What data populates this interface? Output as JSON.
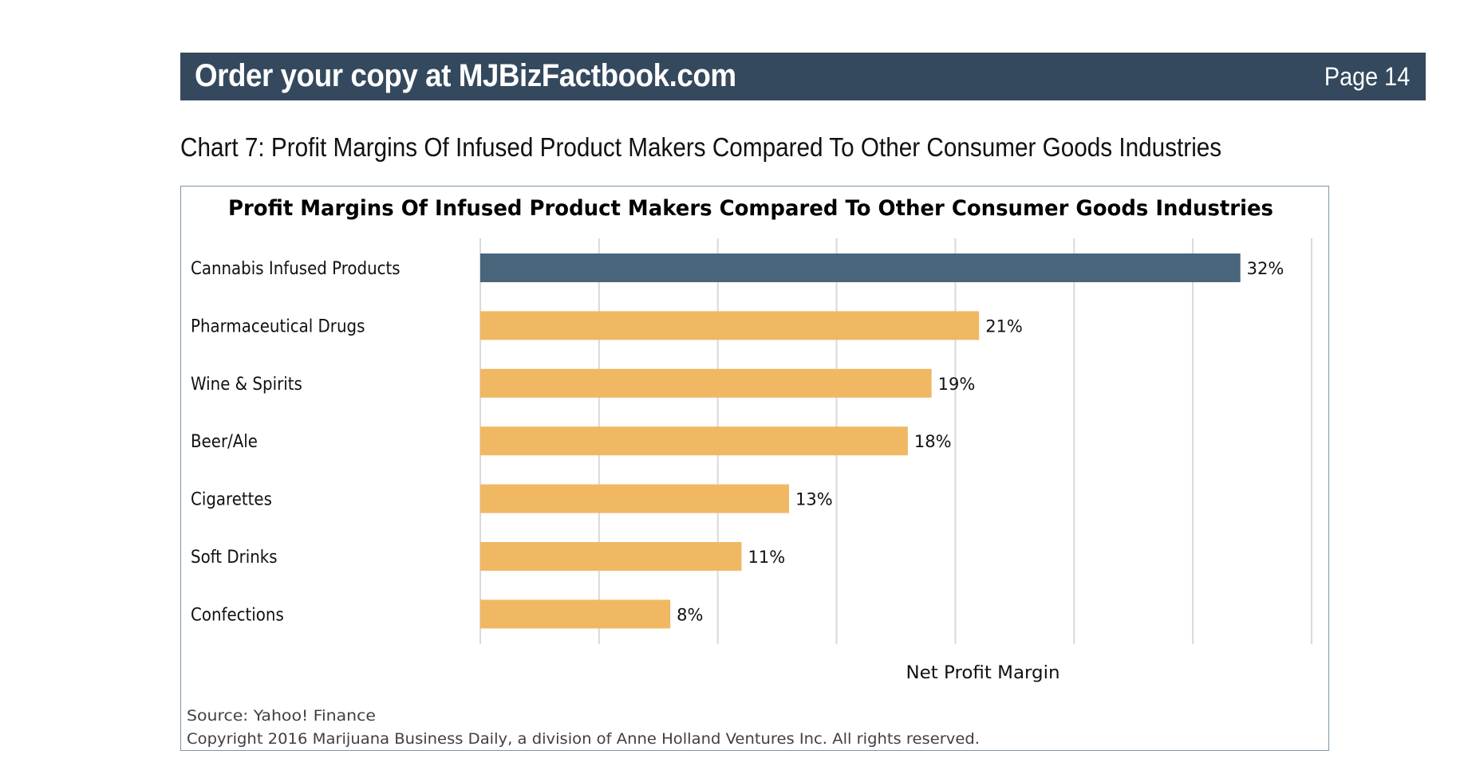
{
  "banner": {
    "title": "Order your copy at MJBizFactbook.com",
    "page": "Page 14"
  },
  "heading": "Chart 7: Profit Margins Of Infused Product Makers Compared To Other Consumer Goods Industries",
  "footer": {
    "source": "Source:  Yahoo! Finance",
    "copyright": "Copyright 2016 Marijuana Business Daily, a division of Anne Holland Ventures Inc. All rights reserved."
  },
  "colors": {
    "banner": "#34495e",
    "highlight_bar": "#48657c",
    "bar": "#f0b862",
    "grid": "#d9d9d9"
  },
  "chart_data": {
    "type": "bar",
    "orientation": "horizontal",
    "title": "Profit Margins Of Infused Product Makers Compared To Other Consumer Goods Industries",
    "xlabel": "Net Profit Margin",
    "ylabel": "",
    "categories": [
      "Cannabis Infused Products",
      "Pharmaceutical Drugs",
      "Wine & Spirits",
      "Beer/Ale",
      "Cigarettes",
      "Soft Drinks",
      "Confections"
    ],
    "values": [
      32,
      21,
      19,
      18,
      13,
      11,
      8
    ],
    "value_labels": [
      "32%",
      "21%",
      "19%",
      "18%",
      "13%",
      "11%",
      "8%"
    ],
    "unit": "%",
    "highlight_index": 0,
    "xlim": [
      0,
      35
    ],
    "grid_step": 5,
    "grid": true,
    "x_tick_labels_shown": false,
    "legend": "none"
  }
}
